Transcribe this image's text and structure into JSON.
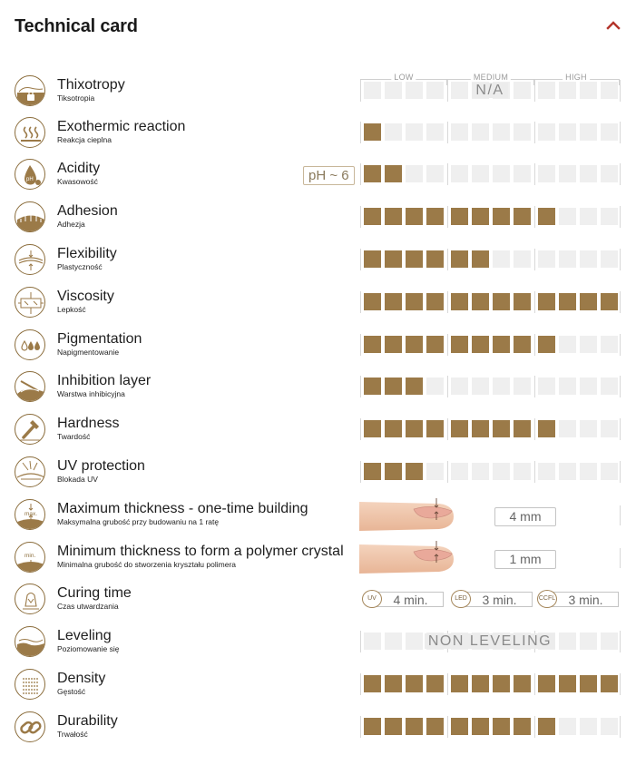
{
  "header": {
    "title": "Technical card"
  },
  "scale": {
    "low": "LOW",
    "medium": "MEDIUM",
    "high": "HIGH"
  },
  "colors": {
    "accent": "#9b7a48",
    "empty": "#efefef",
    "chevron": "#b3342a"
  },
  "rows": [
    {
      "key": "thixotropy",
      "label": "Thixotropy",
      "sub": "Tiksotropia",
      "level": 0,
      "overlay": "N/A",
      "icon": "lock-waves-icon"
    },
    {
      "key": "exothermic",
      "label": "Exothermic reaction",
      "sub": "Reakcja cieplna",
      "level": 1,
      "icon": "heat-waves-icon"
    },
    {
      "key": "acidity",
      "label": "Acidity",
      "sub": "Kwasowość",
      "level": 2,
      "badge": "pH ~ 6",
      "icon": "ph-drop-icon"
    },
    {
      "key": "adhesion",
      "label": "Adhesion",
      "sub": "Adhezja",
      "level": 9,
      "icon": "adhesion-icon"
    },
    {
      "key": "flexibility",
      "label": "Flexibility",
      "sub": "Plastyczność",
      "level": 6,
      "icon": "flexibility-icon"
    },
    {
      "key": "viscosity",
      "label": "Viscosity",
      "sub": "Lepkość",
      "level": 12,
      "icon": "viscosity-icon"
    },
    {
      "key": "pigmentation",
      "label": "Pigmentation",
      "sub": "Napigmentowanie",
      "level": 9,
      "icon": "pigment-drops-icon"
    },
    {
      "key": "inhibition",
      "label": "Inhibition layer",
      "sub": "Warstwa inhibicyjna",
      "level": 3,
      "icon": "inhibition-layer-icon"
    },
    {
      "key": "hardness",
      "label": "Hardness",
      "sub": "Twardość",
      "level": 9,
      "icon": "hammer-icon"
    },
    {
      "key": "uv",
      "label": "UV protection",
      "sub": "Blokada UV",
      "level": 3,
      "icon": "uv-shield-icon"
    },
    {
      "key": "maxthick",
      "label": "Maximum thickness - one-time building",
      "sub": "Maksymalna grubość przy budowaniu na 1 ratę",
      "value": "4 mm",
      "icon": "max-thickness-icon",
      "icon_text": "max."
    },
    {
      "key": "minthick",
      "label": "Minimum thickness to form a polymer crystal",
      "sub": "Minimalna grubość do stworzenia kryształu polimera",
      "value": "1 mm",
      "icon": "min-thickness-icon",
      "icon_text": "min."
    },
    {
      "key": "curing",
      "label": "Curing time",
      "sub": "Czas utwardzania",
      "icon": "lamp-icon",
      "cure": [
        {
          "badge": "UV",
          "time": "4 min."
        },
        {
          "badge": "LED",
          "time": "3 min."
        },
        {
          "badge": "CCFL",
          "time": "3 min."
        }
      ]
    },
    {
      "key": "leveling",
      "label": "Leveling",
      "sub": "Poziomowanie się",
      "level": 0,
      "overlay": "NON LEVELING",
      "icon": "leveling-icon"
    },
    {
      "key": "density",
      "label": "Density",
      "sub": "Gęstość",
      "level": 12,
      "icon": "density-icon"
    },
    {
      "key": "durability",
      "label": "Durability",
      "sub": "Trwałość",
      "level": 9,
      "icon": "chain-icon"
    }
  ]
}
